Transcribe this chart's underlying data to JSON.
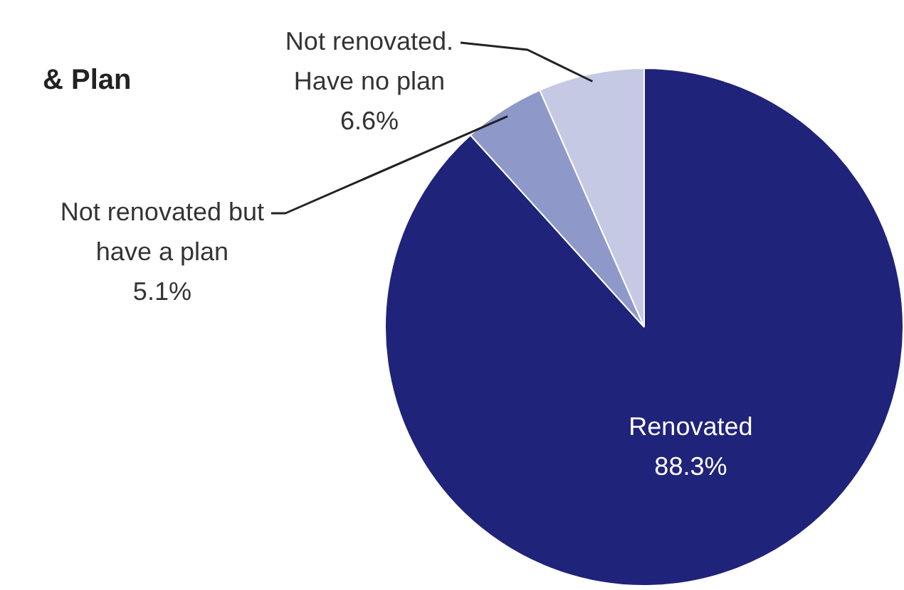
{
  "chart_data": {
    "type": "pie",
    "title": "& Plan",
    "categories": [
      "Renovated",
      "Not renovated but have a plan",
      "Not renovated. Have no plan"
    ],
    "values": [
      88.3,
      5.1,
      6.6
    ],
    "value_labels": [
      "88.3%",
      "5.1%",
      "6.6%"
    ],
    "colors": [
      "#1f237a",
      "#8e98c9",
      "#c5c9e3"
    ],
    "legend": false
  }
}
